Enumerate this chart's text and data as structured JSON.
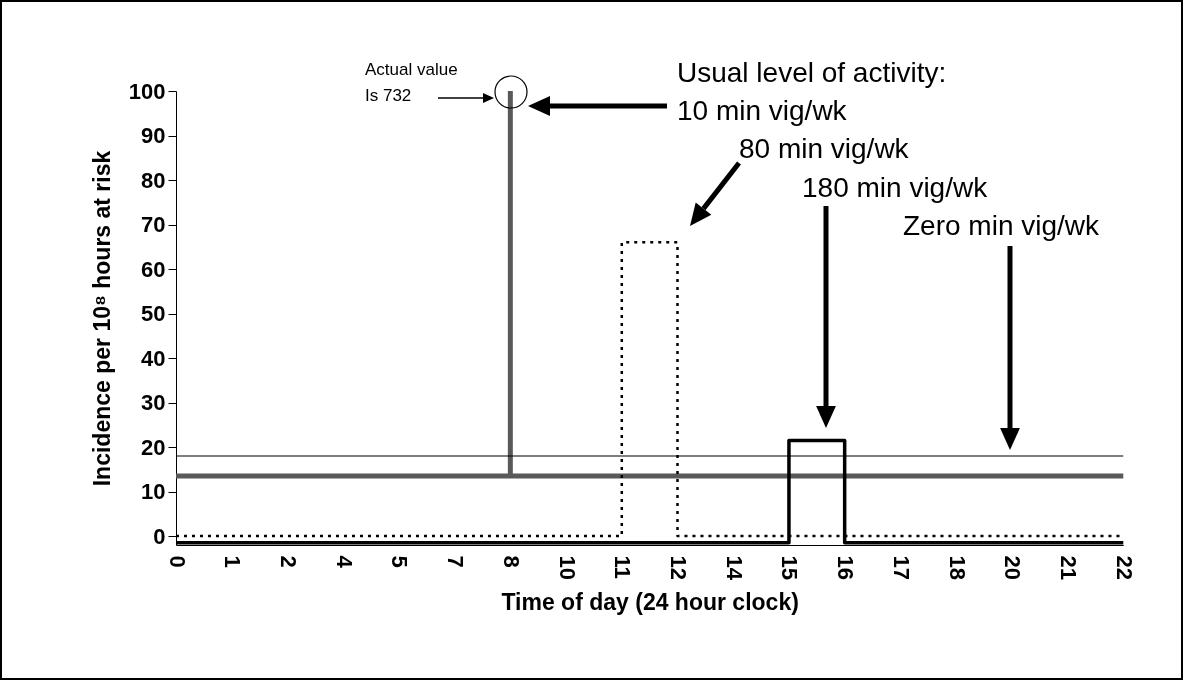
{
  "chart_data": {
    "type": "line",
    "xlabel": "Time of day (24 hour clock)",
    "ylabel": "Incidence per 10⁸ hours at risk",
    "annotations": [
      "Actual value\nIs 732",
      "Usual level of activity:",
      "10 min vig/wk",
      "80 min vig/wk",
      "180 min vig/wk",
      "Zero min vig/wk"
    ],
    "categories": [
      "0",
      "1",
      "2",
      "4",
      "5",
      "7",
      "8",
      "10",
      "11",
      "12",
      "14",
      "15",
      "16",
      "17",
      "18",
      "20",
      "21",
      "22"
    ],
    "ylim": [
      -2,
      100
    ],
    "yticks": [
      0,
      10,
      20,
      30,
      40,
      50,
      60,
      70,
      80,
      90,
      100
    ],
    "grid": false,
    "series": [
      {
        "color": "#595959",
        "line_style": "solid",
        "x": [
          "0",
          "8",
          "8",
          "8",
          "22"
        ],
        "values": [
          13.5,
          13.5,
          100,
          13.5,
          13.5
        ]
      },
      {
        "color": "#000000",
        "line_style": "dotted",
        "x": [
          "0",
          "11",
          "11",
          "12",
          "12",
          "22"
        ],
        "values": [
          0,
          0,
          66,
          66,
          0,
          0
        ]
      },
      {
        "color": "#000000",
        "line_style": "solid",
        "x": [
          "0",
          "15",
          "15",
          "16",
          "16",
          "22"
        ],
        "values": [
          -1.5,
          -1.5,
          21.5,
          21.5,
          -1.5,
          -1.5
        ]
      },
      {
        "color": "#000000",
        "line_style": "solid",
        "x": [
          "0",
          "22"
        ],
        "values": [
          18,
          18
        ]
      }
    ]
  }
}
